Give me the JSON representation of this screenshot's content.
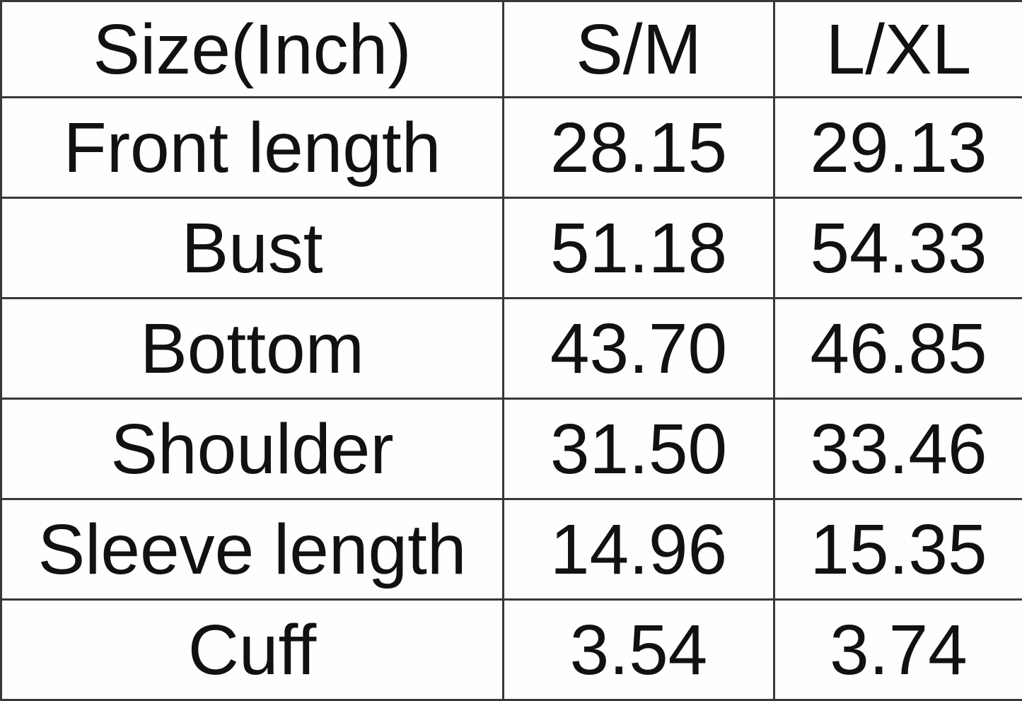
{
  "chart_data": {
    "type": "table",
    "title": "Size(Inch)",
    "columns": [
      "Size(Inch)",
      "S/M",
      "L/XL"
    ],
    "rows": [
      [
        "Front length",
        "28.15",
        "29.13"
      ],
      [
        "Bust",
        "51.18",
        "54.33"
      ],
      [
        "Bottom",
        "43.70",
        "46.85"
      ],
      [
        "Shoulder",
        "31.50",
        "33.46"
      ],
      [
        "Sleeve length",
        "14.96",
        "15.35"
      ],
      [
        "Cuff",
        "3.54",
        "3.74"
      ]
    ]
  },
  "colors": {
    "border": "#383838",
    "text": "#111111",
    "background": "#ffffff"
  }
}
